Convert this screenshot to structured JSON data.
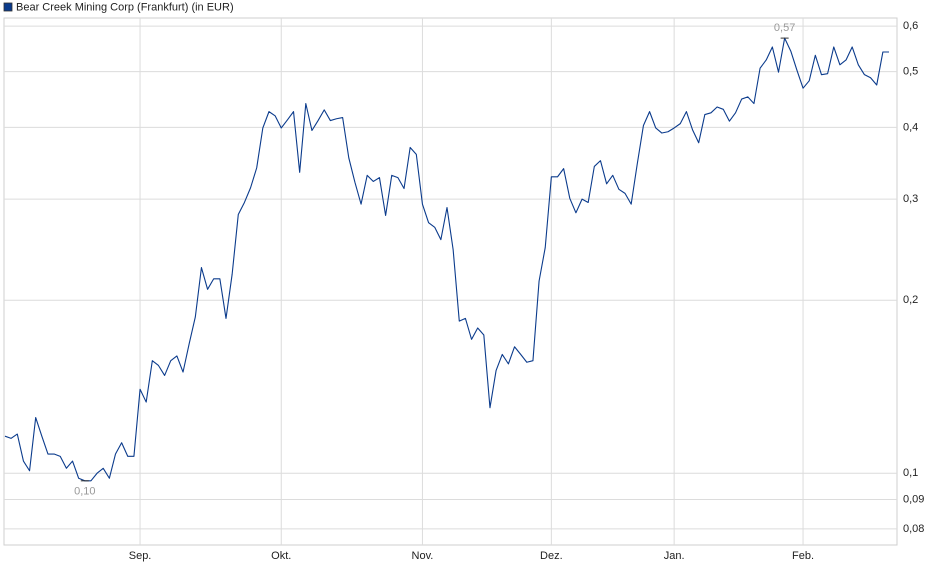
{
  "chart_data": {
    "type": "line",
    "log_scale": true,
    "grid": true,
    "legend": "top-left",
    "ylim": [
      0.075,
      0.62
    ],
    "yticks": [
      {
        "value": 0.08,
        "label": "0,08"
      },
      {
        "value": 0.09,
        "label": "0,09"
      },
      {
        "value": 0.1,
        "label": "0,1"
      },
      {
        "value": 0.2,
        "label": "0,2"
      },
      {
        "value": 0.3,
        "label": "0,3"
      },
      {
        "value": 0.4,
        "label": "0,4"
      },
      {
        "value": 0.5,
        "label": "0,5"
      },
      {
        "value": 0.6,
        "label": "0,6"
      }
    ],
    "categories": [
      null,
      null,
      null,
      null,
      null,
      null,
      null,
      null,
      null,
      null,
      null,
      null,
      null,
      null,
      null,
      null,
      null,
      null,
      null,
      null,
      null,
      null,
      "Sep.",
      null,
      null,
      null,
      null,
      null,
      null,
      null,
      null,
      null,
      null,
      null,
      null,
      null,
      null,
      null,
      null,
      null,
      null,
      null,
      null,
      null,
      null,
      "Okt.",
      null,
      null,
      null,
      null,
      null,
      null,
      null,
      null,
      null,
      null,
      null,
      null,
      null,
      null,
      null,
      null,
      null,
      null,
      null,
      null,
      null,
      null,
      "Nov.",
      null,
      null,
      null,
      null,
      null,
      null,
      null,
      null,
      null,
      null,
      null,
      null,
      null,
      null,
      null,
      null,
      null,
      null,
      null,
      null,
      "Dez.",
      null,
      null,
      null,
      null,
      null,
      null,
      null,
      null,
      null,
      null,
      null,
      null,
      null,
      null,
      null,
      null,
      null,
      null,
      null,
      "Jan.",
      null,
      null,
      null,
      null,
      null,
      null,
      null,
      null,
      null,
      null,
      null,
      null,
      null,
      null,
      null,
      null,
      null,
      null,
      null,
      null,
      "Feb.",
      null,
      null,
      null,
      null,
      null,
      null,
      null,
      null,
      null,
      null,
      null,
      null,
      null,
      null
    ],
    "series": [
      {
        "name": "Bear Creek Mining Corp (Frankfurt) (in EUR)",
        "color": "#0b3b8c",
        "values": [
          0.116,
          0.115,
          0.117,
          0.105,
          0.101,
          0.125,
          0.116,
          0.108,
          0.108,
          0.107,
          0.102,
          0.105,
          0.098,
          0.097,
          0.097,
          0.1,
          0.102,
          0.098,
          0.108,
          0.113,
          0.107,
          0.107,
          0.14,
          0.133,
          0.157,
          0.154,
          0.148,
          0.157,
          0.16,
          0.15,
          0.168,
          0.187,
          0.228,
          0.209,
          0.218,
          0.218,
          0.186,
          0.222,
          0.282,
          0.296,
          0.314,
          0.34,
          0.399,
          0.426,
          0.419,
          0.399,
          0.412,
          0.426,
          0.334,
          0.44,
          0.395,
          0.411,
          0.429,
          0.411,
          0.414,
          0.416,
          0.354,
          0.321,
          0.294,
          0.33,
          0.322,
          0.327,
          0.281,
          0.33,
          0.327,
          0.313,
          0.369,
          0.359,
          0.294,
          0.273,
          0.268,
          0.255,
          0.29,
          0.245,
          0.184,
          0.186,
          0.171,
          0.179,
          0.174,
          0.13,
          0.151,
          0.161,
          0.155,
          0.166,
          0.161,
          0.156,
          0.157,
          0.216,
          0.247,
          0.328,
          0.328,
          0.339,
          0.301,
          0.284,
          0.3,
          0.296,
          0.342,
          0.35,
          0.319,
          0.33,
          0.312,
          0.307,
          0.294,
          0.346,
          0.403,
          0.426,
          0.399,
          0.391,
          0.393,
          0.399,
          0.406,
          0.426,
          0.396,
          0.376,
          0.421,
          0.424,
          0.434,
          0.43,
          0.41,
          0.424,
          0.448,
          0.452,
          0.44,
          0.507,
          0.524,
          0.552,
          0.499,
          0.572,
          0.543,
          0.503,
          0.468,
          0.482,
          0.534,
          0.494,
          0.496,
          0.552,
          0.514,
          0.524,
          0.552,
          0.514,
          0.494,
          0.488,
          0.474,
          0.541,
          0.541
        ],
        "value_labels": [
          null,
          null,
          null,
          null,
          null,
          null,
          null,
          null,
          null,
          null,
          null,
          null,
          null,
          "0,10",
          null,
          null,
          null,
          null,
          null,
          null,
          null,
          null,
          null,
          null,
          null,
          null,
          null,
          null,
          null,
          null,
          null,
          null,
          null,
          null,
          null,
          null,
          null,
          null,
          null,
          null,
          null,
          null,
          null,
          null,
          null,
          null,
          null,
          null,
          null,
          null,
          null,
          null,
          null,
          null,
          null,
          null,
          null,
          null,
          null,
          null,
          null,
          null,
          null,
          null,
          null,
          null,
          null,
          null,
          null,
          null,
          null,
          null,
          null,
          null,
          null,
          null,
          null,
          null,
          null,
          null,
          null,
          null,
          null,
          null,
          null,
          null,
          null,
          null,
          null,
          null,
          null,
          null,
          null,
          null,
          null,
          null,
          null,
          null,
          null,
          null,
          null,
          null,
          null,
          null,
          null,
          null,
          null,
          null,
          null,
          null,
          null,
          null,
          null,
          null,
          null,
          null,
          null,
          null,
          null,
          null,
          null,
          null,
          null,
          null,
          null,
          null,
          null,
          "0,57",
          null,
          null,
          null,
          null,
          null,
          null,
          null,
          null,
          null,
          null,
          null,
          null,
          null,
          null,
          null,
          null,
          null
        ]
      }
    ]
  }
}
